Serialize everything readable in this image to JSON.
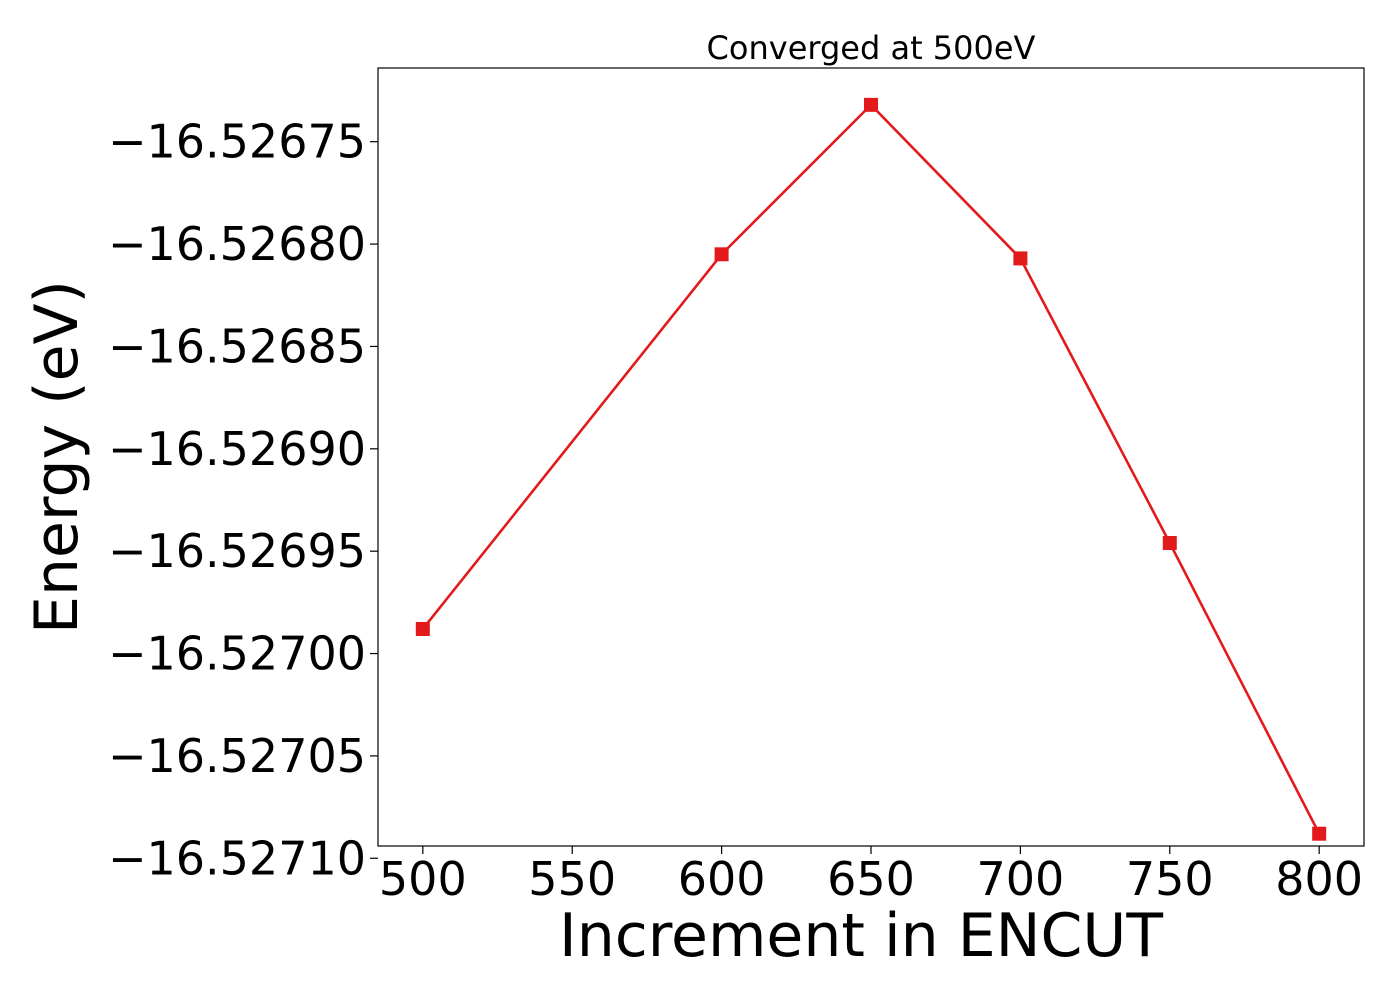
{
  "chart_data": {
    "type": "line",
    "title": "Converged at 500eV",
    "xlabel": "Increment in ENCUT",
    "ylabel": "Energy (eV)",
    "x": [
      500,
      600,
      650,
      700,
      750,
      800
    ],
    "series": [
      {
        "values": [
          -16.526988,
          -16.526805,
          -16.526732,
          -16.526807,
          -16.526946,
          -16.527088
        ],
        "color": "#e31a1c",
        "marker": "square"
      }
    ],
    "xticks": [
      500,
      550,
      600,
      650,
      700,
      750,
      800
    ],
    "xtick_labels": [
      "500",
      "550",
      "600",
      "650",
      "700",
      "750",
      "800"
    ],
    "yticks": [
      -16.52675,
      -16.5268,
      -16.52685,
      -16.5269,
      -16.52695,
      -16.527,
      -16.52705,
      -16.5271
    ],
    "ytick_labels": [
      "−16.52675",
      "−16.52680",
      "−16.52685",
      "−16.52690",
      "−16.52695",
      "−16.52700",
      "−16.52705",
      "−16.52710"
    ],
    "xlim": [
      485,
      815
    ],
    "ylim": [
      -16.527094,
      -16.526714
    ],
    "grid": false,
    "legend": "none"
  }
}
